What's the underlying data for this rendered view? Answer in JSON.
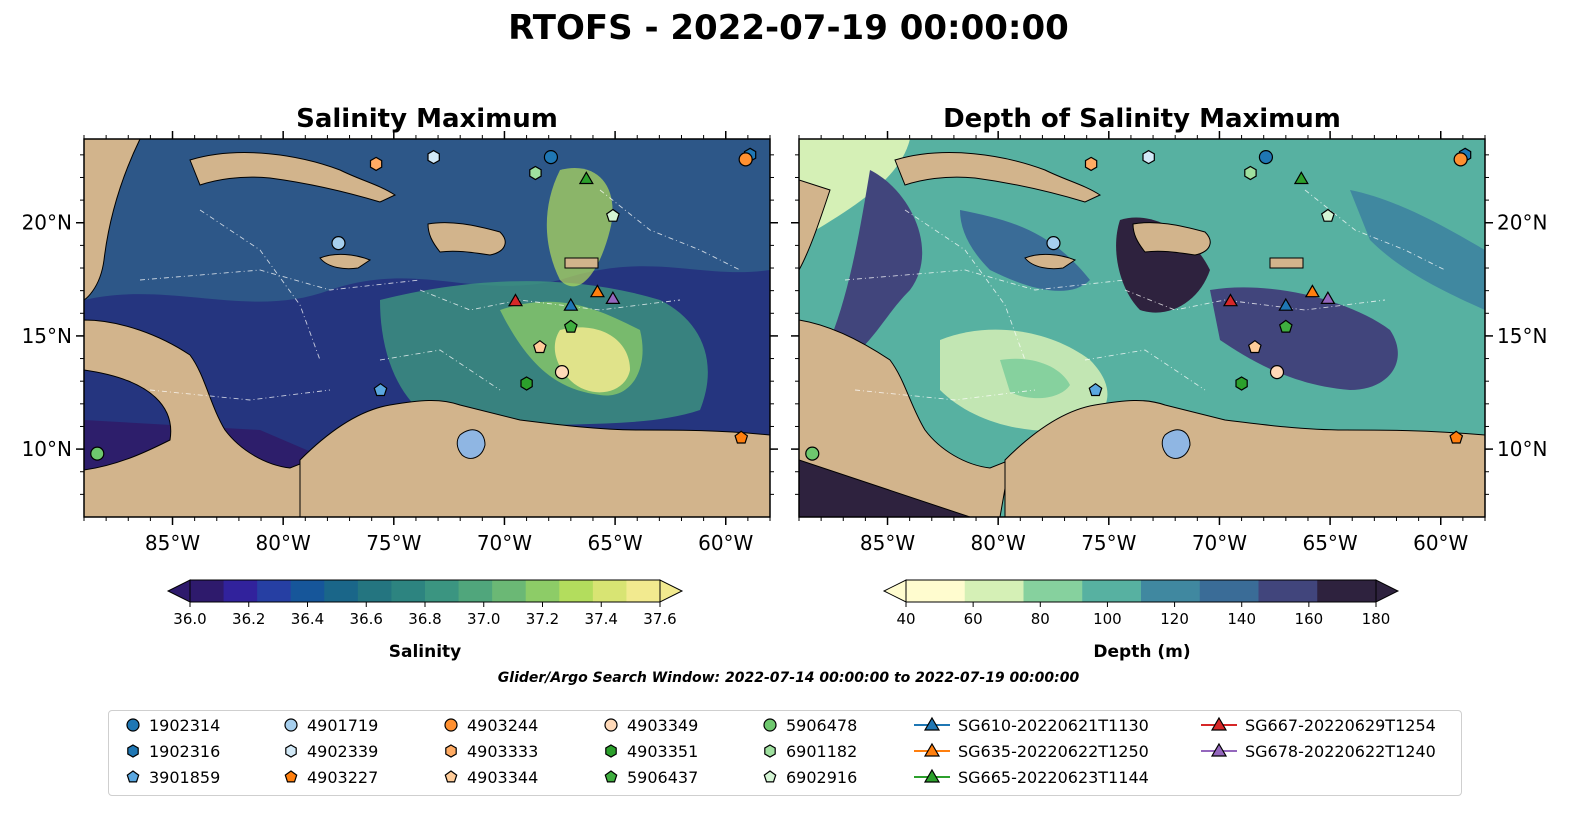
{
  "suptitle": "RTOFS - 2022-07-19 00:00:00",
  "left_map": {
    "title": "Salinity Maximum",
    "lon_ticks": [
      "85°W",
      "80°W",
      "75°W",
      "70°W",
      "65°W",
      "60°W"
    ],
    "lat_ticks_left": [
      "20°N",
      "15°N",
      "10°N"
    ],
    "colors": {
      "land": "#d2b48c",
      "ocean_low": "#2d1e6b",
      "ocean_mid": "#2b6f8e",
      "ocean_high": "#f3e78c"
    }
  },
  "right_map": {
    "title": "Depth of Salinity Maximum",
    "lon_ticks": [
      "85°W",
      "80°W",
      "75°W",
      "70°W",
      "65°W",
      "60°W"
    ],
    "lat_ticks_right": [
      "20°N",
      "15°N",
      "10°N"
    ],
    "colors": {
      "land": "#d2b48c",
      "lake": "#8fb6e3"
    }
  },
  "colorbar_salinity": {
    "label": "Salinity",
    "ticks": [
      "36.0",
      "36.2",
      "36.4",
      "36.6",
      "36.8",
      "37.0",
      "37.2",
      "37.4",
      "37.6"
    ],
    "colors": [
      "#2e1a6c",
      "#31229c",
      "#263fa3",
      "#16569a",
      "#1a6689",
      "#247580",
      "#2d8480",
      "#3b9581",
      "#50a67c",
      "#6bb875",
      "#8dcc67",
      "#b3dd5d",
      "#d8e473",
      "#f2ea8f"
    ]
  },
  "colorbar_depth": {
    "label": "Depth (m)",
    "ticks": [
      "40",
      "60",
      "80",
      "100",
      "120",
      "140",
      "160",
      "180"
    ],
    "colors": [
      "#d5f0b6",
      "#86d19e",
      "#57b1a1",
      "#4088a0",
      "#3a6c97",
      "#41457c",
      "#2e223e"
    ]
  },
  "window_note": "Glider/Argo Search Window: 2022-07-14 00:00:00 to 2022-07-19 00:00:00",
  "legend": [
    {
      "label": "1902314",
      "marker": "circle",
      "color": "#1f77b4"
    },
    {
      "label": "1902316",
      "marker": "hexagon",
      "color": "#1f77b4"
    },
    {
      "label": "3901859",
      "marker": "pentagon",
      "color": "#5aa7e0"
    },
    {
      "label": "4901719",
      "marker": "circle",
      "color": "#a6cfee"
    },
    {
      "label": "4902339",
      "marker": "hexagon",
      "color": "#d2e9f7"
    },
    {
      "label": "4903227",
      "marker": "pentagon",
      "color": "#ff7f0e"
    },
    {
      "label": "4903244",
      "marker": "circle",
      "color": "#ff9030"
    },
    {
      "label": "4903333",
      "marker": "hexagon",
      "color": "#ffab63"
    },
    {
      "label": "4903344",
      "marker": "pentagon",
      "color": "#ffcc99"
    },
    {
      "label": "4903349",
      "marker": "circle",
      "color": "#ffd9b8"
    },
    {
      "label": "4903351",
      "marker": "hexagon",
      "color": "#2ca02c"
    },
    {
      "label": "5906437",
      "marker": "pentagon",
      "color": "#3fae3f"
    },
    {
      "label": "5906478",
      "marker": "circle",
      "color": "#6ec86e"
    },
    {
      "label": "6901182",
      "marker": "hexagon",
      "color": "#9fe09f"
    },
    {
      "label": "6902916",
      "marker": "pentagon",
      "color": "#d4f5d4"
    },
    {
      "label": "SG610-20220621T1130",
      "marker": "triangle-line",
      "color": "#1f77b4"
    },
    {
      "label": "SG635-20220622T1250",
      "marker": "triangle-line",
      "color": "#ff7f0e"
    },
    {
      "label": "SG665-20220623T1144",
      "marker": "triangle-line",
      "color": "#2ca02c"
    },
    {
      "label": "SG667-20220629T1254",
      "marker": "triangle-line",
      "color": "#d62728"
    },
    {
      "label": "SG678-20220622T1240",
      "marker": "triangle-line",
      "color": "#9467bd"
    }
  ],
  "map_markers": [
    {
      "id": "1902314",
      "lon": -67.9,
      "lat": 22.9
    },
    {
      "id": "1902316",
      "lon": -58.9,
      "lat": 23.0
    },
    {
      "id": "3901859",
      "lon": -75.6,
      "lat": 12.6
    },
    {
      "id": "4901719",
      "lon": -77.5,
      "lat": 19.1
    },
    {
      "id": "4902339",
      "lon": -73.2,
      "lat": 22.9
    },
    {
      "id": "4903227",
      "lon": -59.3,
      "lat": 10.5
    },
    {
      "id": "4903244",
      "lon": -59.1,
      "lat": 22.8
    },
    {
      "id": "4903333",
      "lon": -75.8,
      "lat": 22.6
    },
    {
      "id": "4903344",
      "lon": -68.4,
      "lat": 14.5
    },
    {
      "id": "4903349",
      "lon": -67.4,
      "lat": 13.4
    },
    {
      "id": "4903351",
      "lon": -69.0,
      "lat": 12.9
    },
    {
      "id": "5906437",
      "lon": -67.0,
      "lat": 15.4
    },
    {
      "id": "5906478",
      "lon": -88.4,
      "lat": 9.8
    },
    {
      "id": "6901182",
      "lon": -68.6,
      "lat": 22.2
    },
    {
      "id": "6902916",
      "lon": -65.1,
      "lat": 20.3
    },
    {
      "id": "SG610-20220621T1130",
      "lon": -67.0,
      "lat": 16.3
    },
    {
      "id": "SG635-20220622T1250",
      "lon": -65.8,
      "lat": 16.9
    },
    {
      "id": "SG665-20220623T1144",
      "lon": -66.3,
      "lat": 21.9
    },
    {
      "id": "SG667-20220629T1254",
      "lon": -69.5,
      "lat": 16.5
    },
    {
      "id": "SG678-20220622T1240",
      "lon": -65.1,
      "lat": 16.6
    }
  ]
}
